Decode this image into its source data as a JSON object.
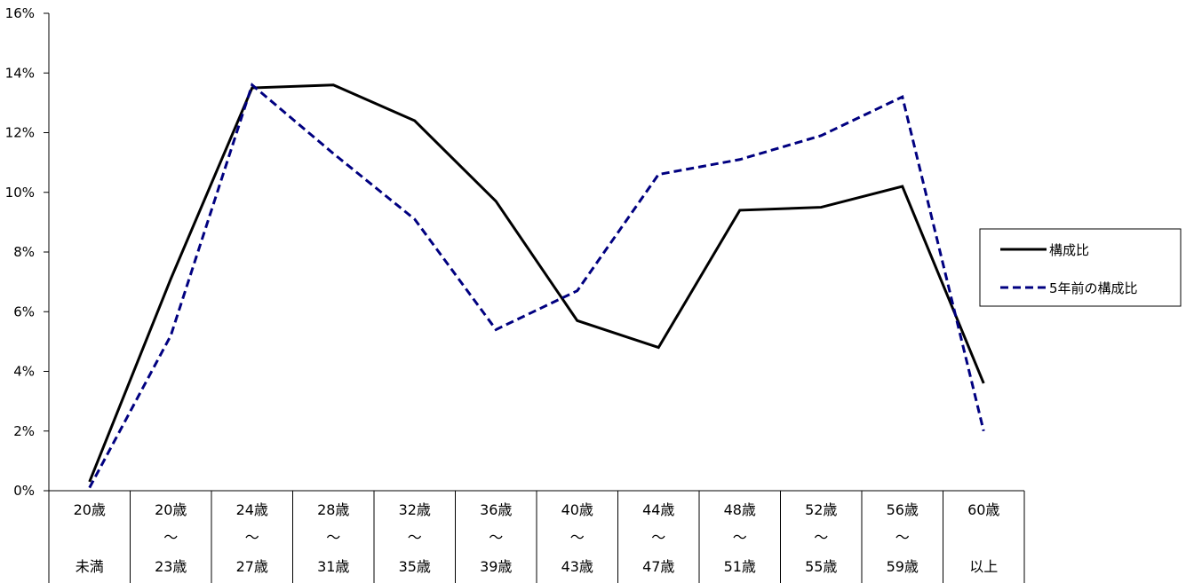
{
  "chart_data": {
    "type": "line",
    "categories": [
      [
        "20歳",
        "",
        "未満"
      ],
      [
        "20歳",
        "～",
        "23歳"
      ],
      [
        "24歳",
        "～",
        "27歳"
      ],
      [
        "28歳",
        "～",
        "31歳"
      ],
      [
        "32歳",
        "～",
        "35歳"
      ],
      [
        "36歳",
        "～",
        "39歳"
      ],
      [
        "40歳",
        "～",
        "43歳"
      ],
      [
        "44歳",
        "～",
        "47歳"
      ],
      [
        "48歳",
        "～",
        "51歳"
      ],
      [
        "52歳",
        "～",
        "55歳"
      ],
      [
        "56歳",
        "～",
        "59歳"
      ],
      [
        "60歳",
        "",
        "以上"
      ]
    ],
    "series": [
      {
        "name": "構成比",
        "values": [
          0.3,
          7.1,
          13.5,
          13.6,
          12.4,
          9.7,
          5.7,
          4.8,
          9.4,
          9.5,
          10.2,
          3.6
        ],
        "color": "#000000",
        "style": "solid"
      },
      {
        "name": "5年前の構成比",
        "values": [
          0.1,
          5.2,
          13.6,
          11.3,
          9.1,
          5.4,
          6.7,
          10.6,
          11.1,
          11.9,
          13.2,
          2.0
        ],
        "color": "#000080",
        "style": "dashed"
      }
    ],
    "ylim": [
      0,
      16
    ],
    "yticks": [
      "0%",
      "2%",
      "4%",
      "6%",
      "8%",
      "10%",
      "12%",
      "14%",
      "16%"
    ],
    "grid": false,
    "legend_position": "right"
  }
}
